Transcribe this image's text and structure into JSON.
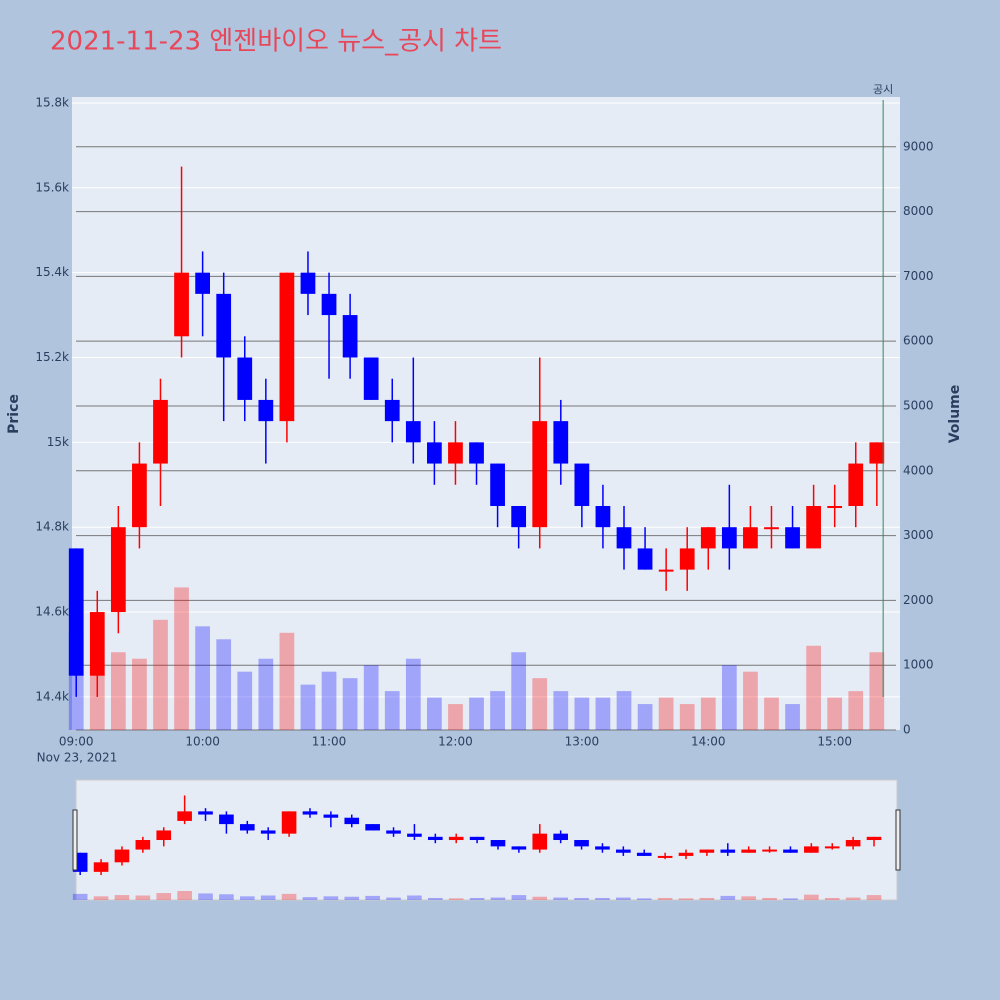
{
  "chart_data": {
    "type": "candlestick",
    "title": "2021-11-23 엔젠바이오 뉴스_공시 차트",
    "y_label": "Price",
    "y2_label": "Volume",
    "x_date_label": "Nov 23, 2021",
    "up_color": "#ff0000",
    "down_color": "#0000ff",
    "x": [
      "09:00",
      "09:10",
      "09:20",
      "09:30",
      "09:40",
      "09:50",
      "10:00",
      "10:10",
      "10:20",
      "10:30",
      "10:40",
      "10:50",
      "11:00",
      "11:10",
      "11:20",
      "11:30",
      "11:40",
      "11:50",
      "12:00",
      "12:10",
      "12:20",
      "12:30",
      "12:40",
      "12:50",
      "13:00",
      "13:10",
      "13:20",
      "13:30",
      "13:40",
      "13:50",
      "14:00",
      "14:10",
      "14:20",
      "14:30",
      "14:40",
      "14:50",
      "15:00",
      "15:10",
      "15:20"
    ],
    "open": [
      14750,
      14450,
      14600,
      14800,
      14950,
      15250,
      15400,
      15350,
      15200,
      15100,
      15050,
      15400,
      15350,
      15300,
      15200,
      15100,
      15050,
      15000,
      14950,
      15000,
      14950,
      14850,
      14800,
      15050,
      14950,
      14850,
      14800,
      14750,
      14700,
      14700,
      14750,
      14800,
      14750,
      14800,
      14800,
      14750,
      14850,
      14850,
      14950
    ],
    "high": [
      14750,
      14650,
      14850,
      15000,
      15150,
      15650,
      15450,
      15400,
      15250,
      15150,
      15400,
      15450,
      15400,
      15350,
      15200,
      15150,
      15200,
      15050,
      15050,
      15000,
      14950,
      14850,
      15200,
      15100,
      14950,
      14900,
      14850,
      14800,
      14750,
      14800,
      14800,
      14900,
      14850,
      14850,
      14850,
      14900,
      14900,
      15000,
      15000
    ],
    "low": [
      14400,
      14400,
      14550,
      14750,
      14850,
      15200,
      15250,
      15050,
      15050,
      14950,
      15000,
      15300,
      15150,
      15150,
      15100,
      15000,
      14950,
      14900,
      14900,
      14900,
      14800,
      14750,
      14750,
      14900,
      14800,
      14750,
      14700,
      14700,
      14650,
      14650,
      14700,
      14700,
      14750,
      14750,
      14750,
      14750,
      14800,
      14800,
      14850
    ],
    "close": [
      14450,
      14600,
      14800,
      14950,
      15100,
      15400,
      15350,
      15200,
      15100,
      15050,
      15400,
      15350,
      15300,
      15200,
      15100,
      15050,
      15000,
      14950,
      15000,
      14950,
      14850,
      14800,
      15050,
      14950,
      14850,
      14800,
      14750,
      14700,
      14700,
      14750,
      14800,
      14750,
      14800,
      14800,
      14750,
      14850,
      14850,
      14950,
      15000
    ],
    "volume": [
      1500,
      900,
      1200,
      1100,
      1700,
      2200,
      1600,
      1400,
      900,
      1100,
      1500,
      700,
      900,
      800,
      1000,
      600,
      1100,
      500,
      400,
      500,
      600,
      1200,
      800,
      600,
      500,
      500,
      600,
      400,
      500,
      400,
      500,
      1000,
      900,
      500,
      400,
      1300,
      500,
      600,
      1200
    ],
    "ylim": [
      14322,
      15814
    ],
    "yticks": [
      {
        "value": 14400,
        "label": "14.4k"
      },
      {
        "value": 14600,
        "label": "14.6k"
      },
      {
        "value": 14800,
        "label": "14.8k"
      },
      {
        "value": 15000,
        "label": "15k"
      },
      {
        "value": 15200,
        "label": "15.2k"
      },
      {
        "value": 15400,
        "label": "15.4k"
      },
      {
        "value": 15600,
        "label": "15.6k"
      },
      {
        "value": 15800,
        "label": "15.8k"
      }
    ],
    "y2lim": [
      0,
      9768
    ],
    "y2ticks": [
      0,
      1000,
      2000,
      3000,
      4000,
      5000,
      6000,
      7000,
      8000,
      9000
    ],
    "xlim": [
      "08:58",
      "15:31"
    ],
    "xticks": [
      "09:00",
      "10:00",
      "11:00",
      "12:00",
      "13:00",
      "14:00",
      "15:00"
    ],
    "annotation": {
      "text": "공시",
      "x": "15:23",
      "color": "#2e8b57"
    }
  }
}
